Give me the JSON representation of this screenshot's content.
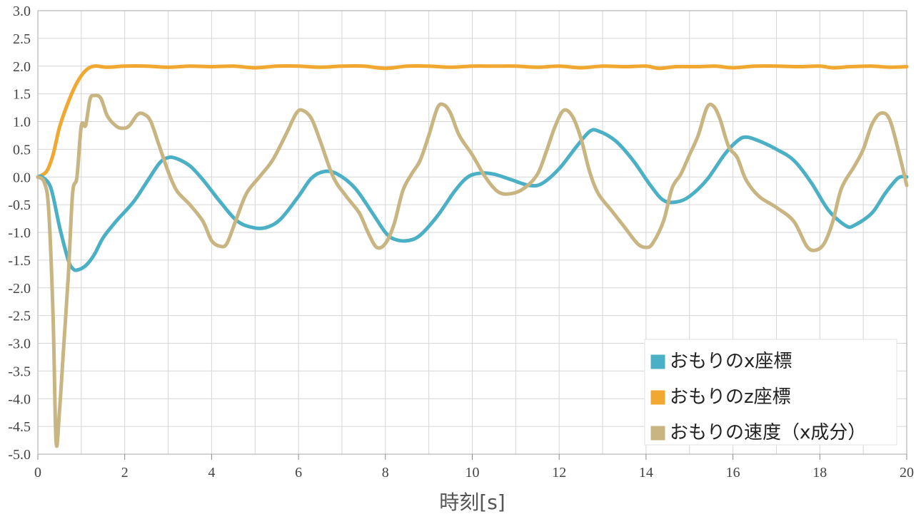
{
  "chart_data": {
    "type": "line",
    "xlabel": "時刻[s]",
    "ylabel": "",
    "xlim": [
      0,
      20
    ],
    "ylim": [
      -5.0,
      3.0
    ],
    "x_ticks": [
      "0",
      "2",
      "4",
      "6",
      "8",
      "10",
      "12",
      "14",
      "16",
      "18",
      "20"
    ],
    "y_ticks": [
      "3.0",
      "2.5",
      "2.0",
      "1.5",
      "1.0",
      "0.5",
      "0.0",
      "-0.5",
      "-1.0",
      "-1.5",
      "-2.0",
      "-2.5",
      "-3.0",
      "-3.5",
      "-4.0",
      "-4.5",
      "-5.0"
    ],
    "grid": true,
    "legend_position": "bottom-right",
    "series": [
      {
        "name": "おもりのx座標",
        "color": "#4bb0c6",
        "points": [
          [
            0,
            0
          ],
          [
            0.1,
            0
          ],
          [
            0.3,
            -0.2
          ],
          [
            0.5,
            -0.9
          ],
          [
            0.7,
            -1.5
          ],
          [
            0.8,
            -1.65
          ],
          [
            0.9,
            -1.68
          ],
          [
            1.1,
            -1.6
          ],
          [
            1.3,
            -1.4
          ],
          [
            1.5,
            -1.1
          ],
          [
            1.8,
            -0.8
          ],
          [
            2.2,
            -0.45
          ],
          [
            2.5,
            -0.1
          ],
          [
            2.8,
            0.25
          ],
          [
            3.0,
            0.35
          ],
          [
            3.2,
            0.33
          ],
          [
            3.5,
            0.2
          ],
          [
            3.8,
            -0.05
          ],
          [
            4.2,
            -0.45
          ],
          [
            4.6,
            -0.8
          ],
          [
            5.0,
            -0.92
          ],
          [
            5.3,
            -0.9
          ],
          [
            5.6,
            -0.75
          ],
          [
            6.0,
            -0.35
          ],
          [
            6.3,
            -0.02
          ],
          [
            6.6,
            0.1
          ],
          [
            6.9,
            0.05
          ],
          [
            7.3,
            -0.2
          ],
          [
            7.7,
            -0.65
          ],
          [
            8.0,
            -1.0
          ],
          [
            8.2,
            -1.12
          ],
          [
            8.5,
            -1.15
          ],
          [
            8.8,
            -1.05
          ],
          [
            9.2,
            -0.7
          ],
          [
            9.6,
            -0.25
          ],
          [
            9.9,
            0.0
          ],
          [
            10.2,
            0.07
          ],
          [
            10.5,
            0.05
          ],
          [
            10.9,
            -0.05
          ],
          [
            11.3,
            -0.15
          ],
          [
            11.6,
            -0.12
          ],
          [
            12.0,
            0.15
          ],
          [
            12.4,
            0.55
          ],
          [
            12.7,
            0.82
          ],
          [
            12.9,
            0.83
          ],
          [
            13.3,
            0.65
          ],
          [
            13.7,
            0.3
          ],
          [
            14.1,
            -0.15
          ],
          [
            14.4,
            -0.42
          ],
          [
            14.7,
            -0.45
          ],
          [
            15.0,
            -0.35
          ],
          [
            15.4,
            -0.05
          ],
          [
            15.8,
            0.4
          ],
          [
            16.1,
            0.65
          ],
          [
            16.3,
            0.72
          ],
          [
            16.6,
            0.65
          ],
          [
            17.0,
            0.5
          ],
          [
            17.4,
            0.3
          ],
          [
            17.8,
            -0.1
          ],
          [
            18.2,
            -0.6
          ],
          [
            18.6,
            -0.88
          ],
          [
            18.8,
            -0.87
          ],
          [
            19.2,
            -0.65
          ],
          [
            19.5,
            -0.3
          ],
          [
            19.8,
            -0.02
          ],
          [
            20.0,
            0.0
          ]
        ]
      },
      {
        "name": "おもりのz座標",
        "color": "#f0a830",
        "points": [
          [
            0,
            0
          ],
          [
            0.2,
            0.1
          ],
          [
            0.35,
            0.4
          ],
          [
            0.5,
            0.9
          ],
          [
            0.7,
            1.35
          ],
          [
            0.9,
            1.7
          ],
          [
            1.1,
            1.92
          ],
          [
            1.3,
            2.0
          ],
          [
            1.6,
            1.98
          ],
          [
            2.0,
            2.0
          ],
          [
            2.5,
            2.0
          ],
          [
            3.0,
            1.98
          ],
          [
            3.5,
            2.0
          ],
          [
            4.0,
            1.99
          ],
          [
            4.5,
            2.0
          ],
          [
            5.0,
            1.97
          ],
          [
            5.5,
            2.0
          ],
          [
            6.0,
            2.0
          ],
          [
            6.5,
            1.98
          ],
          [
            7.0,
            2.0
          ],
          [
            7.5,
            2.0
          ],
          [
            8.0,
            1.96
          ],
          [
            8.5,
            2.0
          ],
          [
            9.0,
            2.0
          ],
          [
            9.5,
            1.98
          ],
          [
            10.0,
            2.0
          ],
          [
            10.5,
            2.0
          ],
          [
            11.0,
            2.0
          ],
          [
            11.5,
            1.98
          ],
          [
            12.0,
            2.0
          ],
          [
            12.5,
            1.97
          ],
          [
            13.0,
            2.0
          ],
          [
            13.5,
            1.99
          ],
          [
            14.0,
            2.0
          ],
          [
            14.3,
            1.96
          ],
          [
            14.7,
            1.99
          ],
          [
            15.2,
            1.99
          ],
          [
            15.6,
            2.0
          ],
          [
            16.0,
            1.97
          ],
          [
            16.5,
            2.0
          ],
          [
            17.0,
            2.0
          ],
          [
            17.5,
            1.99
          ],
          [
            18.0,
            2.0
          ],
          [
            18.3,
            1.97
          ],
          [
            18.7,
            1.99
          ],
          [
            19.2,
            2.0
          ],
          [
            19.6,
            1.98
          ],
          [
            20.0,
            1.99
          ]
        ]
      },
      {
        "name": "おもりの速度（x成分）",
        "color": "#c8b582",
        "points": [
          [
            0,
            0
          ],
          [
            0.15,
            -0.1
          ],
          [
            0.25,
            -0.6
          ],
          [
            0.35,
            -2.5
          ],
          [
            0.42,
            -4.78
          ],
          [
            0.5,
            -4.2
          ],
          [
            0.6,
            -3.0
          ],
          [
            0.7,
            -1.8
          ],
          [
            0.8,
            -0.3
          ],
          [
            0.9,
            0.0
          ],
          [
            1.0,
            0.92
          ],
          [
            1.1,
            0.93
          ],
          [
            1.2,
            1.4
          ],
          [
            1.3,
            1.47
          ],
          [
            1.45,
            1.42
          ],
          [
            1.6,
            1.1
          ],
          [
            1.8,
            0.92
          ],
          [
            1.95,
            0.88
          ],
          [
            2.1,
            0.92
          ],
          [
            2.3,
            1.13
          ],
          [
            2.45,
            1.13
          ],
          [
            2.6,
            1.0
          ],
          [
            2.8,
            0.55
          ],
          [
            3.0,
            0.1
          ],
          [
            3.2,
            -0.25
          ],
          [
            3.5,
            -0.5
          ],
          [
            3.8,
            -0.8
          ],
          [
            4.0,
            -1.15
          ],
          [
            4.2,
            -1.25
          ],
          [
            4.35,
            -1.2
          ],
          [
            4.55,
            -0.8
          ],
          [
            4.8,
            -0.3
          ],
          [
            5.1,
            0.0
          ],
          [
            5.4,
            0.3
          ],
          [
            5.7,
            0.75
          ],
          [
            5.95,
            1.15
          ],
          [
            6.1,
            1.2
          ],
          [
            6.3,
            1.05
          ],
          [
            6.5,
            0.65
          ],
          [
            6.8,
            0.0
          ],
          [
            7.1,
            -0.35
          ],
          [
            7.4,
            -0.65
          ],
          [
            7.6,
            -1.0
          ],
          [
            7.8,
            -1.27
          ],
          [
            8.0,
            -1.2
          ],
          [
            8.2,
            -0.85
          ],
          [
            8.4,
            -0.25
          ],
          [
            8.6,
            0.05
          ],
          [
            8.8,
            0.3
          ],
          [
            9.0,
            0.75
          ],
          [
            9.2,
            1.25
          ],
          [
            9.35,
            1.3
          ],
          [
            9.5,
            1.15
          ],
          [
            9.7,
            0.75
          ],
          [
            10.0,
            0.4
          ],
          [
            10.3,
            0.0
          ],
          [
            10.6,
            -0.27
          ],
          [
            10.9,
            -0.3
          ],
          [
            11.2,
            -0.2
          ],
          [
            11.5,
            0.05
          ],
          [
            11.7,
            0.45
          ],
          [
            11.9,
            0.9
          ],
          [
            12.1,
            1.2
          ],
          [
            12.3,
            1.1
          ],
          [
            12.5,
            0.7
          ],
          [
            12.7,
            0.1
          ],
          [
            12.9,
            -0.3
          ],
          [
            13.2,
            -0.6
          ],
          [
            13.5,
            -0.9
          ],
          [
            13.8,
            -1.2
          ],
          [
            14.0,
            -1.27
          ],
          [
            14.15,
            -1.2
          ],
          [
            14.4,
            -0.8
          ],
          [
            14.6,
            -0.2
          ],
          [
            14.8,
            0.05
          ],
          [
            15.0,
            0.4
          ],
          [
            15.2,
            0.75
          ],
          [
            15.4,
            1.25
          ],
          [
            15.55,
            1.28
          ],
          [
            15.7,
            1.05
          ],
          [
            15.9,
            0.55
          ],
          [
            16.1,
            0.35
          ],
          [
            16.3,
            -0.05
          ],
          [
            16.6,
            -0.35
          ],
          [
            17.0,
            -0.55
          ],
          [
            17.4,
            -0.8
          ],
          [
            17.7,
            -1.25
          ],
          [
            17.9,
            -1.32
          ],
          [
            18.1,
            -1.2
          ],
          [
            18.3,
            -0.8
          ],
          [
            18.5,
            -0.2
          ],
          [
            18.8,
            0.2
          ],
          [
            19.0,
            0.5
          ],
          [
            19.2,
            0.95
          ],
          [
            19.4,
            1.15
          ],
          [
            19.6,
            1.05
          ],
          [
            19.8,
            0.5
          ],
          [
            20.0,
            -0.15
          ]
        ]
      }
    ]
  }
}
